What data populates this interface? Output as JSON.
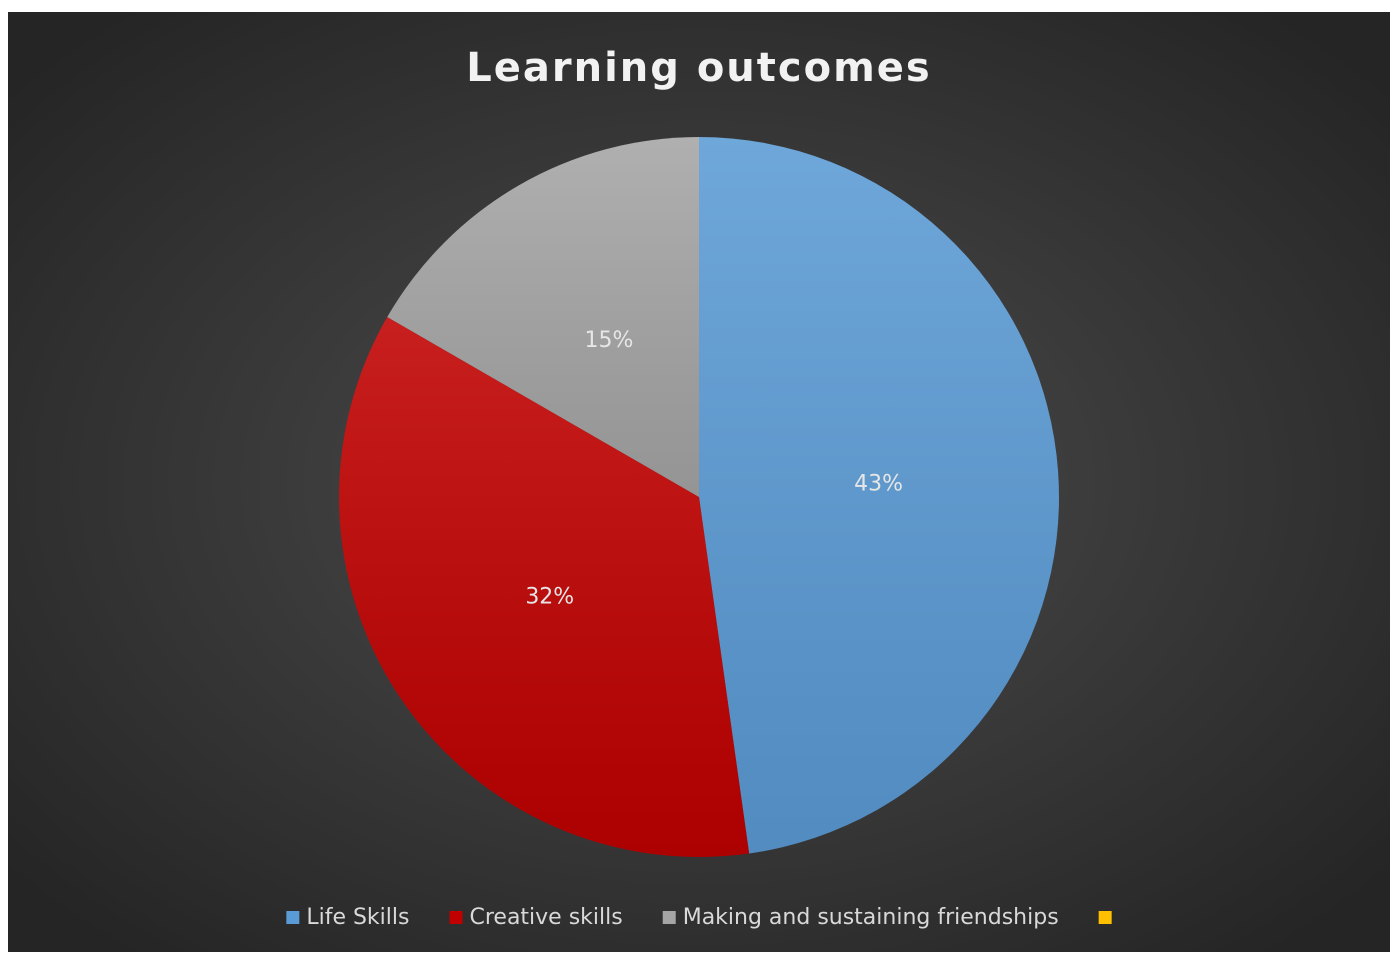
{
  "chart_data": {
    "type": "pie",
    "title": "Learning outcomes",
    "categories": [
      "Life Skills",
      "Creative skills",
      "Making and sustaining friendships",
      null
    ],
    "values": [
      43,
      32,
      15,
      null
    ],
    "value_labels": [
      "43%",
      "32%",
      "15%",
      null
    ],
    "colors": [
      "#5b9bd5",
      "#c00000",
      "#a5a5a5",
      "#ffc000"
    ],
    "legend": "bottom"
  }
}
